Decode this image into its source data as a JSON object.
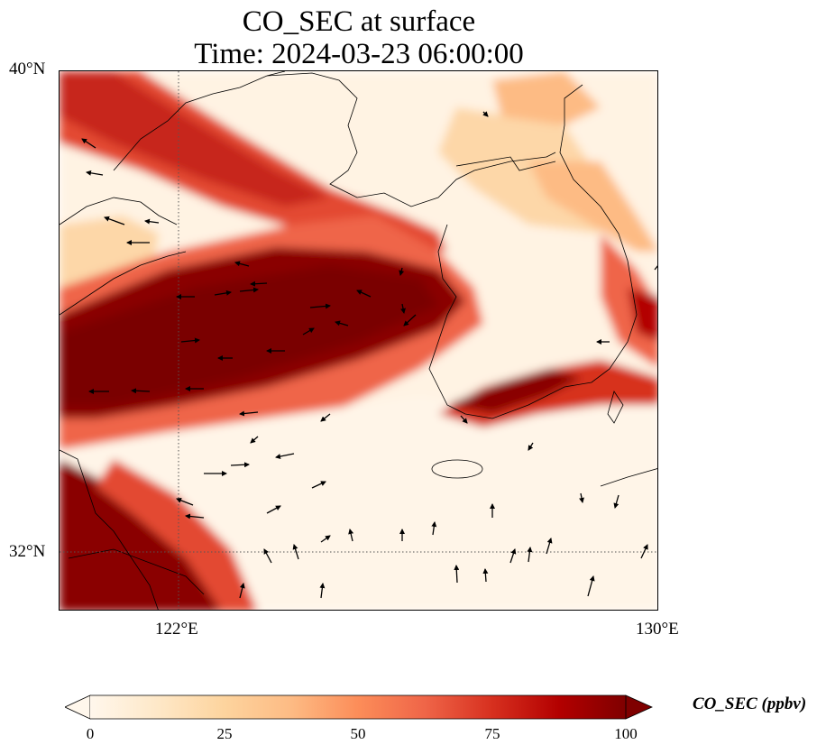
{
  "title": {
    "line1": "CO_SEC at surface",
    "line2": "Time: 2024-03-23 06:00:00"
  },
  "axes": {
    "lat_labels": [
      "40°N",
      "32°N"
    ],
    "lon_labels": [
      "122°E",
      "130°E"
    ],
    "lon_range": [
      120,
      130
    ],
    "lat_range": [
      31,
      40
    ],
    "gridlines": "dotted at 122°E and 32°N"
  },
  "colorbar": {
    "label": "CO_SEC (ppbv)",
    "ticks": [
      "0",
      "25",
      "50",
      "75",
      "100"
    ],
    "min": 0,
    "max": 100,
    "colormap": [
      "#fff7ec",
      "#fee8c8",
      "#fdd49e",
      "#fdbb84",
      "#fc8d59",
      "#ef6548",
      "#d7301f",
      "#b30000",
      "#7f0000"
    ],
    "extend": "both"
  },
  "colors": {
    "coastline": "#000000",
    "wind_arrow": "#000000"
  }
}
